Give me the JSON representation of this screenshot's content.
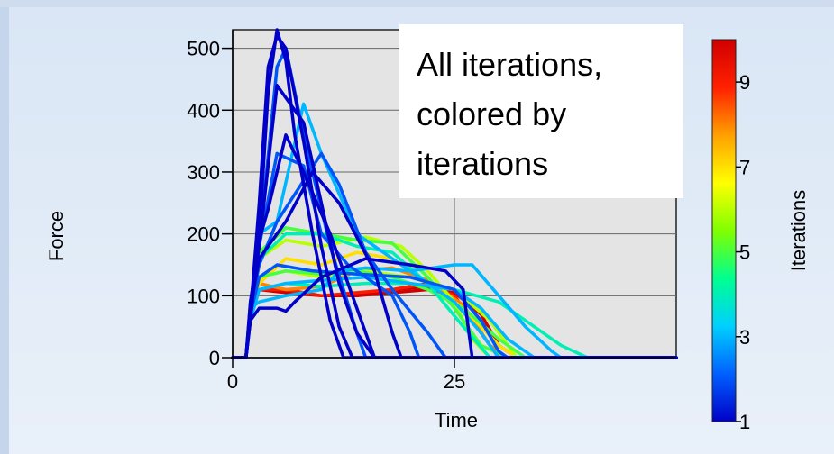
{
  "chart_data": {
    "type": "line",
    "xlabel": "Time",
    "ylabel": "Force",
    "xlim": [
      0,
      50
    ],
    "ylim": [
      0,
      530
    ],
    "x_ticks": [
      "0",
      "25"
    ],
    "y_ticks": [
      "0",
      "100",
      "200",
      "300",
      "400",
      "500"
    ],
    "grid": true,
    "colorbar": {
      "label": "Iterations",
      "range": [
        1,
        10
      ],
      "ticks": [
        "1",
        "3",
        "5",
        "7",
        "9"
      ],
      "colormap": [
        "#0000c8",
        "#0060ff",
        "#00d0ff",
        "#00ff90",
        "#80ff00",
        "#ffff00",
        "#ffa000",
        "#ff2000",
        "#d00000"
      ]
    },
    "annotation": {
      "lines": [
        "All iterations,",
        "colored by",
        "iterations"
      ]
    },
    "series": [
      {
        "iteration": 1,
        "x": [
          0,
          1.5,
          2,
          3,
          4,
          5,
          6,
          7,
          9,
          11,
          12.5,
          14,
          50
        ],
        "y": [
          0,
          0,
          60,
          200,
          430,
          530,
          480,
          360,
          200,
          60,
          0,
          0,
          0
        ]
      },
      {
        "iteration": 1,
        "x": [
          0,
          1.5,
          2,
          3,
          4,
          5,
          6,
          8,
          10,
          12,
          13.5,
          50
        ],
        "y": [
          0,
          0,
          70,
          250,
          470,
          520,
          500,
          350,
          180,
          50,
          0,
          0
        ]
      },
      {
        "iteration": 1,
        "x": [
          0,
          1.5,
          2,
          3,
          4,
          6,
          8,
          11,
          13,
          15,
          16,
          50
        ],
        "y": [
          0,
          0,
          80,
          190,
          240,
          360,
          300,
          200,
          120,
          40,
          0,
          0
        ]
      },
      {
        "iteration": 1,
        "x": [
          0,
          1.5,
          2,
          3,
          5,
          8,
          10,
          12,
          14,
          16,
          50
        ],
        "y": [
          0,
          0,
          90,
          180,
          440,
          380,
          250,
          120,
          40,
          0,
          0
        ]
      },
      {
        "iteration": 1,
        "x": [
          0,
          1.5,
          2,
          3,
          5,
          6,
          7,
          10,
          15,
          20,
          24,
          26,
          27,
          50
        ],
        "y": [
          0,
          0,
          60,
          80,
          80,
          75,
          90,
          130,
          160,
          150,
          140,
          110,
          0,
          0
        ]
      },
      {
        "iteration": 1,
        "x": [
          0,
          1.5,
          2,
          3,
          6,
          9,
          12,
          16,
          18,
          19,
          50
        ],
        "y": [
          0,
          0,
          80,
          160,
          220,
          300,
          250,
          140,
          40,
          0,
          0
        ]
      },
      {
        "iteration": 2,
        "x": [
          0,
          1.5,
          2,
          3,
          5,
          8,
          10,
          13,
          16,
          18,
          20,
          21,
          50
        ],
        "y": [
          0,
          0,
          70,
          180,
          330,
          310,
          200,
          150,
          120,
          100,
          40,
          0,
          0
        ]
      },
      {
        "iteration": 2,
        "x": [
          0,
          1.5,
          2,
          3,
          5,
          9,
          14,
          20,
          25,
          28,
          30,
          31,
          50
        ],
        "y": [
          0,
          0,
          70,
          130,
          150,
          140,
          135,
          130,
          110,
          60,
          10,
          0,
          0
        ]
      },
      {
        "iteration": 2,
        "x": [
          0,
          1.5,
          2,
          3,
          5,
          10,
          12,
          15,
          18,
          22,
          24,
          50
        ],
        "y": [
          0,
          0,
          80,
          150,
          220,
          330,
          280,
          170,
          110,
          40,
          0,
          0
        ]
      },
      {
        "iteration": 2,
        "x": [
          0,
          1.5,
          2,
          3,
          5,
          6,
          8,
          11,
          14,
          15,
          50
        ],
        "y": [
          0,
          0,
          90,
          180,
          470,
          500,
          360,
          180,
          40,
          0,
          0
        ]
      },
      {
        "iteration": 3,
        "x": [
          0,
          1.5,
          2,
          3,
          6,
          10,
          12,
          15,
          20,
          25,
          27,
          30,
          33,
          36,
          37,
          50
        ],
        "y": [
          0,
          0,
          80,
          90,
          100,
          110,
          140,
          145,
          140,
          150,
          150,
          100,
          50,
          10,
          0,
          0
        ]
      },
      {
        "iteration": 3,
        "x": [
          0,
          1.5,
          2,
          3,
          5,
          8,
          10,
          14,
          18,
          22,
          25,
          28,
          30,
          50
        ],
        "y": [
          0,
          0,
          70,
          200,
          220,
          410,
          330,
          200,
          160,
          120,
          90,
          40,
          0,
          0
        ]
      },
      {
        "iteration": 3,
        "x": [
          0,
          1.5,
          2,
          3,
          6,
          10,
          15,
          20,
          25,
          28,
          31,
          34,
          50
        ],
        "y": [
          0,
          0,
          60,
          110,
          120,
          125,
          130,
          120,
          110,
          80,
          30,
          0,
          0
        ]
      },
      {
        "iteration": 4,
        "x": [
          0,
          1.5,
          2,
          3,
          6,
          10,
          15,
          20,
          25,
          30,
          34,
          37,
          40,
          50
        ],
        "y": [
          0,
          0,
          80,
          110,
          120,
          115,
          120,
          120,
          110,
          90,
          50,
          20,
          0,
          0
        ]
      },
      {
        "iteration": 4,
        "x": [
          0,
          1.5,
          2,
          3,
          6,
          10,
          14,
          18,
          22,
          26,
          29,
          50
        ],
        "y": [
          0,
          0,
          70,
          160,
          200,
          200,
          180,
          170,
          120,
          50,
          0,
          0
        ]
      },
      {
        "iteration": 5,
        "x": [
          0,
          1.5,
          2,
          3,
          6,
          10,
          14,
          18,
          22,
          25,
          28,
          31,
          50
        ],
        "y": [
          0,
          0,
          80,
          170,
          210,
          200,
          190,
          185,
          130,
          80,
          20,
          0,
          0
        ]
      },
      {
        "iteration": 5,
        "x": [
          0,
          1.5,
          2,
          3,
          6,
          10,
          14,
          18,
          22,
          26,
          30,
          33,
          50
        ],
        "y": [
          0,
          0,
          70,
          130,
          140,
          135,
          140,
          130,
          110,
          80,
          30,
          0,
          0
        ]
      },
      {
        "iteration": 6,
        "x": [
          0,
          1.5,
          2,
          3,
          6,
          10,
          15,
          19,
          22,
          25,
          27,
          29,
          50
        ],
        "y": [
          0,
          0,
          80,
          160,
          190,
          180,
          195,
          180,
          140,
          90,
          30,
          0,
          0
        ]
      },
      {
        "iteration": 6,
        "x": [
          0,
          1.5,
          2,
          3,
          6,
          10,
          15,
          20,
          25,
          29,
          32,
          50
        ],
        "y": [
          0,
          0,
          80,
          130,
          140,
          130,
          140,
          130,
          110,
          60,
          0,
          0
        ]
      },
      {
        "iteration": 7,
        "x": [
          0,
          1.5,
          2,
          3,
          6,
          10,
          14,
          18,
          22,
          26,
          30,
          32,
          50
        ],
        "y": [
          0,
          0,
          80,
          120,
          160,
          150,
          170,
          160,
          120,
          80,
          20,
          0,
          0
        ]
      },
      {
        "iteration": 8,
        "x": [
          0,
          1.5,
          2,
          3,
          6,
          10,
          14,
          18,
          22,
          26,
          29,
          31,
          50
        ],
        "y": [
          0,
          0,
          80,
          120,
          110,
          115,
          140,
          145,
          125,
          85,
          20,
          0,
          0
        ]
      },
      {
        "iteration": 9,
        "x": [
          0,
          1.5,
          2,
          3,
          6,
          10,
          14,
          18,
          22,
          25,
          28,
          30,
          50
        ],
        "y": [
          0,
          0,
          80,
          110,
          110,
          100,
          105,
          110,
          120,
          100,
          40,
          0,
          0
        ]
      },
      {
        "iteration": 10,
        "x": [
          0,
          1.5,
          2,
          3,
          6,
          10,
          14,
          18,
          22,
          25,
          28,
          30,
          50
        ],
        "y": [
          0,
          0,
          80,
          110,
          110,
          100,
          100,
          110,
          115,
          95,
          40,
          0,
          0
        ]
      },
      {
        "iteration": 10,
        "x": [
          0,
          1.5,
          2,
          3,
          6,
          10,
          14,
          18,
          22,
          25,
          28,
          30,
          32,
          50
        ],
        "y": [
          0,
          0,
          80,
          110,
          105,
          100,
          100,
          105,
          110,
          105,
          70,
          20,
          0,
          0
        ]
      }
    ]
  }
}
